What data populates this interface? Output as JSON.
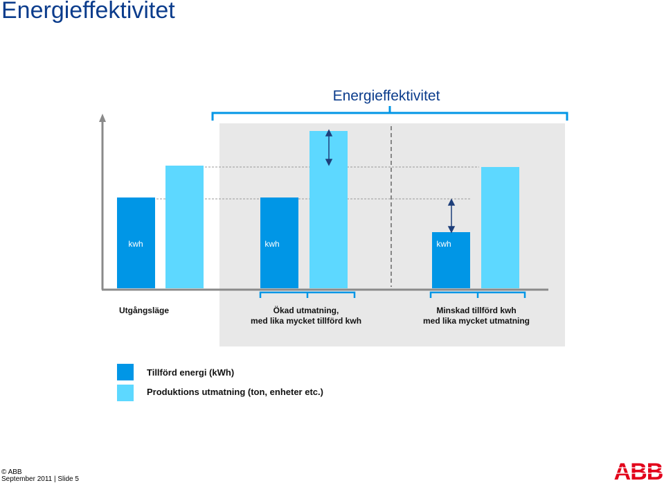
{
  "page_title": "Energieffektivitet",
  "diagram": {
    "title": "Energieffektivitet",
    "bar_label": "kwh",
    "groups": [
      {
        "line1": "Utgångsläge",
        "line2": ""
      },
      {
        "line1": "Ökad utmatning,",
        "line2": "med lika mycket tillförd kwh"
      },
      {
        "line1": "Minskad tillförd kwh",
        "line2": "med lika mycket utmatning"
      }
    ]
  },
  "legend": [
    {
      "label": "Tillförd energi  (kWh)",
      "color": "#0096e6"
    },
    {
      "label": "Produktions utmatning (ton, enheter etc.)",
      "color": "#5dd8ff"
    }
  ],
  "footer": {
    "copyright": "© ABB",
    "date_slide": "September 2011 | Slide 5"
  },
  "logo": {
    "text": "ABB",
    "color": "#e2001a"
  },
  "colors": {
    "dark_blue_bar": "#0096e6",
    "light_blue_bar": "#5dd8ff",
    "panel": "#e8e8e8",
    "title_blue": "#0b3c8c"
  }
}
